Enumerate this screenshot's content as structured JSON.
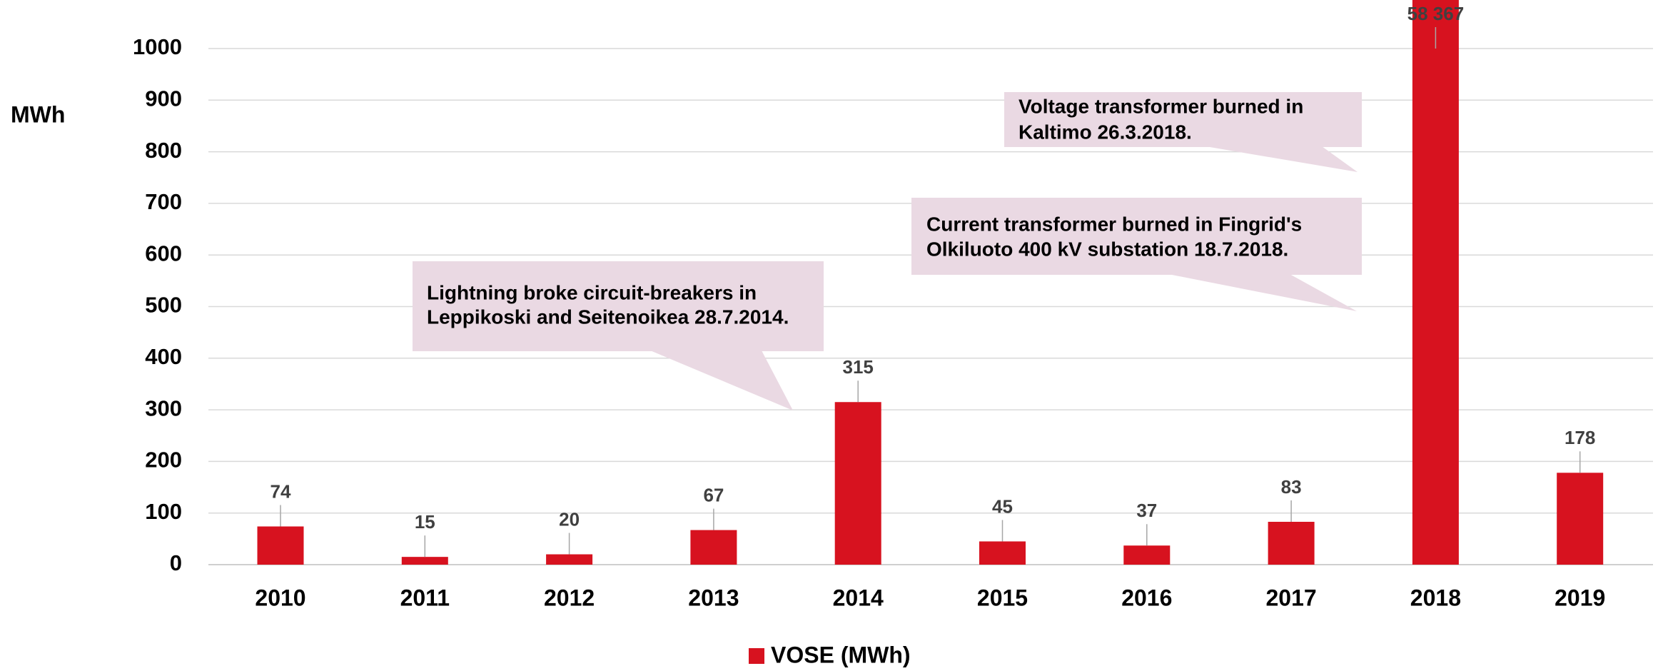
{
  "chart_data": {
    "type": "bar",
    "y_label": "MWh",
    "categories": [
      "2010",
      "2011",
      "2012",
      "2013",
      "2014",
      "2015",
      "2016",
      "2017",
      "2018",
      "2019"
    ],
    "series": [
      {
        "name": "VOSE (MWh)",
        "color": "#d7121f",
        "values": [
          74,
          15,
          20,
          67,
          315,
          45,
          37,
          83,
          58367,
          178
        ],
        "value_labels": [
          "74",
          "15",
          "20",
          "67",
          "315",
          "45",
          "37",
          "83",
          "58 367",
          "178"
        ]
      }
    ],
    "ylim": [
      0,
      1000
    ],
    "yticks": [
      0,
      100,
      200,
      300,
      400,
      500,
      600,
      700,
      800,
      900,
      1000
    ],
    "grid": true,
    "legend": "bottom",
    "annotations": [
      {
        "lines": [
          "Lightning broke circuit-breakers in",
          "Leppikoski and Seitenoikea 28.7.2014."
        ]
      },
      {
        "lines": [
          "Current transformer burned in Fingrid's",
          "Olkiluoto 400 kV substation 18.7.2018."
        ]
      },
      {
        "lines": [
          "Voltage transformer burned in",
          "Kaltimo 26.3.2018."
        ]
      }
    ]
  }
}
